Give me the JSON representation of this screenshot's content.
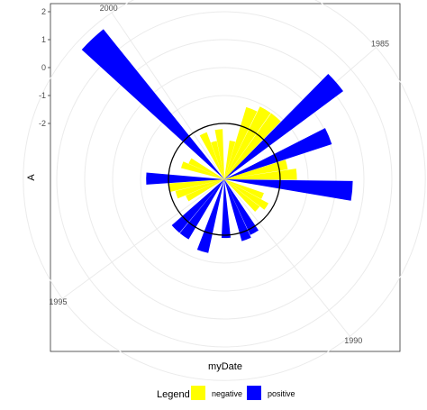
{
  "chart_data": {
    "type": "bar",
    "coordinate_system": "polar",
    "xlabel": "myDate",
    "ylabel": "A",
    "x_ticks": [
      "1985",
      "1990",
      "1995",
      "2000"
    ],
    "y_ticks": [
      "2",
      "1",
      "0",
      "-1",
      "-2"
    ],
    "ylim": [
      -4,
      3.2
    ],
    "grid": true,
    "reference_circle_value": -2,
    "legend": {
      "title": "Legend",
      "placement": "bottom",
      "entries": [
        {
          "label": "negative",
          "color": "#FFFF00"
        },
        {
          "label": "positive",
          "color": "#0000FF"
        }
      ]
    },
    "bars": [
      {
        "year": 1983,
        "value": -2.6,
        "sign": "negative"
      },
      {
        "year": 1983.5,
        "value": -1.3,
        "sign": "negative"
      },
      {
        "year": 1984,
        "value": -1.1,
        "sign": "negative"
      },
      {
        "year": 1984.5,
        "value": -1.1,
        "sign": "negative"
      },
      {
        "year": 1985,
        "value": 1.3,
        "sign": "positive"
      },
      {
        "year": 1986,
        "value": 0.05,
        "sign": "positive"
      },
      {
        "year": 1986.5,
        "value": -1.7,
        "sign": "negative"
      },
      {
        "year": 1987,
        "value": -1.4,
        "sign": "negative"
      },
      {
        "year": 1987.5,
        "value": 0.6,
        "sign": "positive"
      },
      {
        "year": 1988.5,
        "value": -2.5,
        "sign": "negative"
      },
      {
        "year": 1989,
        "value": -2.2,
        "sign": "negative"
      },
      {
        "year": 1989.5,
        "value": -2.4,
        "sign": "negative"
      },
      {
        "year": 1990.5,
        "value": -1.8,
        "sign": "positive"
      },
      {
        "year": 1991,
        "value": -1.7,
        "sign": "positive"
      },
      {
        "year": 1992,
        "value": -1.9,
        "sign": "positive"
      },
      {
        "year": 1993,
        "value": -1.3,
        "sign": "positive"
      },
      {
        "year": 1994,
        "value": -1.5,
        "sign": "positive"
      },
      {
        "year": 1994.5,
        "value": -1.5,
        "sign": "positive"
      },
      {
        "year": 1995.5,
        "value": -2.5,
        "sign": "negative"
      },
      {
        "year": 1996,
        "value": -2.2,
        "sign": "negative"
      },
      {
        "year": 1996.5,
        "value": -2.0,
        "sign": "negative"
      },
      {
        "year": 1997,
        "value": -1.2,
        "sign": "positive"
      },
      {
        "year": 1998,
        "value": -2.4,
        "sign": "negative"
      },
      {
        "year": 1998.5,
        "value": -2.6,
        "sign": "negative"
      },
      {
        "year": 1999.5,
        "value": 2.9,
        "sign": "positive"
      },
      {
        "year": 2000.5,
        "value": -2.2,
        "sign": "negative"
      },
      {
        "year": 2001,
        "value": -2.6,
        "sign": "negative"
      },
      {
        "year": 2001.5,
        "value": -2.2,
        "sign": "negative"
      }
    ],
    "colors": {
      "negative": "#FFFF00",
      "positive": "#0000FF"
    }
  }
}
